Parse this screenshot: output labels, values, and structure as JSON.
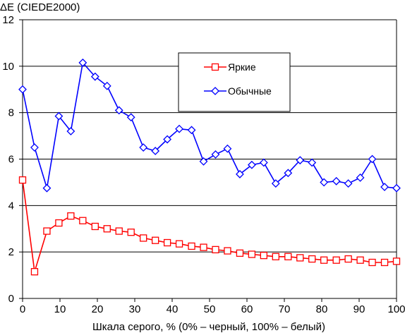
{
  "chart_data": {
    "type": "line",
    "title": "",
    "ylabel": "ΔE (CIEDE2000)",
    "xlabel": "Шкала серого, % (0% – черный, 100% – белый)",
    "xlim": [
      0,
      100
    ],
    "ylim": [
      0,
      12
    ],
    "x_ticks": [
      0,
      10,
      20,
      30,
      40,
      50,
      60,
      70,
      80,
      90,
      100
    ],
    "y_ticks": [
      0,
      2,
      4,
      6,
      8,
      10,
      12
    ],
    "grid": "horizontal",
    "legend_position": "top-right",
    "x": [
      0,
      3.2,
      6.5,
      9.7,
      12.9,
      16.1,
      19.4,
      22.6,
      25.8,
      29.0,
      32.3,
      35.5,
      38.7,
      41.9,
      45.2,
      48.4,
      51.6,
      54.8,
      58.1,
      61.3,
      64.5,
      67.7,
      71.0,
      74.2,
      77.4,
      80.6,
      83.9,
      87.1,
      90.3,
      93.5,
      96.8,
      100
    ],
    "series": [
      {
        "name": "Яркие",
        "color": "#ff0000",
        "marker": "square",
        "values": [
          5.1,
          1.15,
          2.9,
          3.25,
          3.55,
          3.35,
          3.1,
          3.0,
          2.9,
          2.85,
          2.6,
          2.5,
          2.4,
          2.35,
          2.25,
          2.2,
          2.1,
          2.05,
          1.95,
          1.9,
          1.85,
          1.8,
          1.8,
          1.75,
          1.7,
          1.65,
          1.65,
          1.7,
          1.65,
          1.55,
          1.55,
          1.6
        ]
      },
      {
        "name": "Обычные",
        "color": "#0000ff",
        "marker": "diamond",
        "values": [
          9.0,
          6.5,
          4.75,
          7.85,
          7.2,
          10.15,
          9.55,
          9.15,
          8.1,
          7.8,
          6.5,
          6.35,
          6.85,
          7.3,
          7.25,
          5.9,
          6.2,
          6.45,
          5.35,
          5.75,
          5.85,
          4.95,
          5.4,
          5.95,
          5.85,
          5.0,
          5.05,
          4.95,
          5.2,
          6.0,
          4.8,
          4.75
        ]
      }
    ]
  }
}
